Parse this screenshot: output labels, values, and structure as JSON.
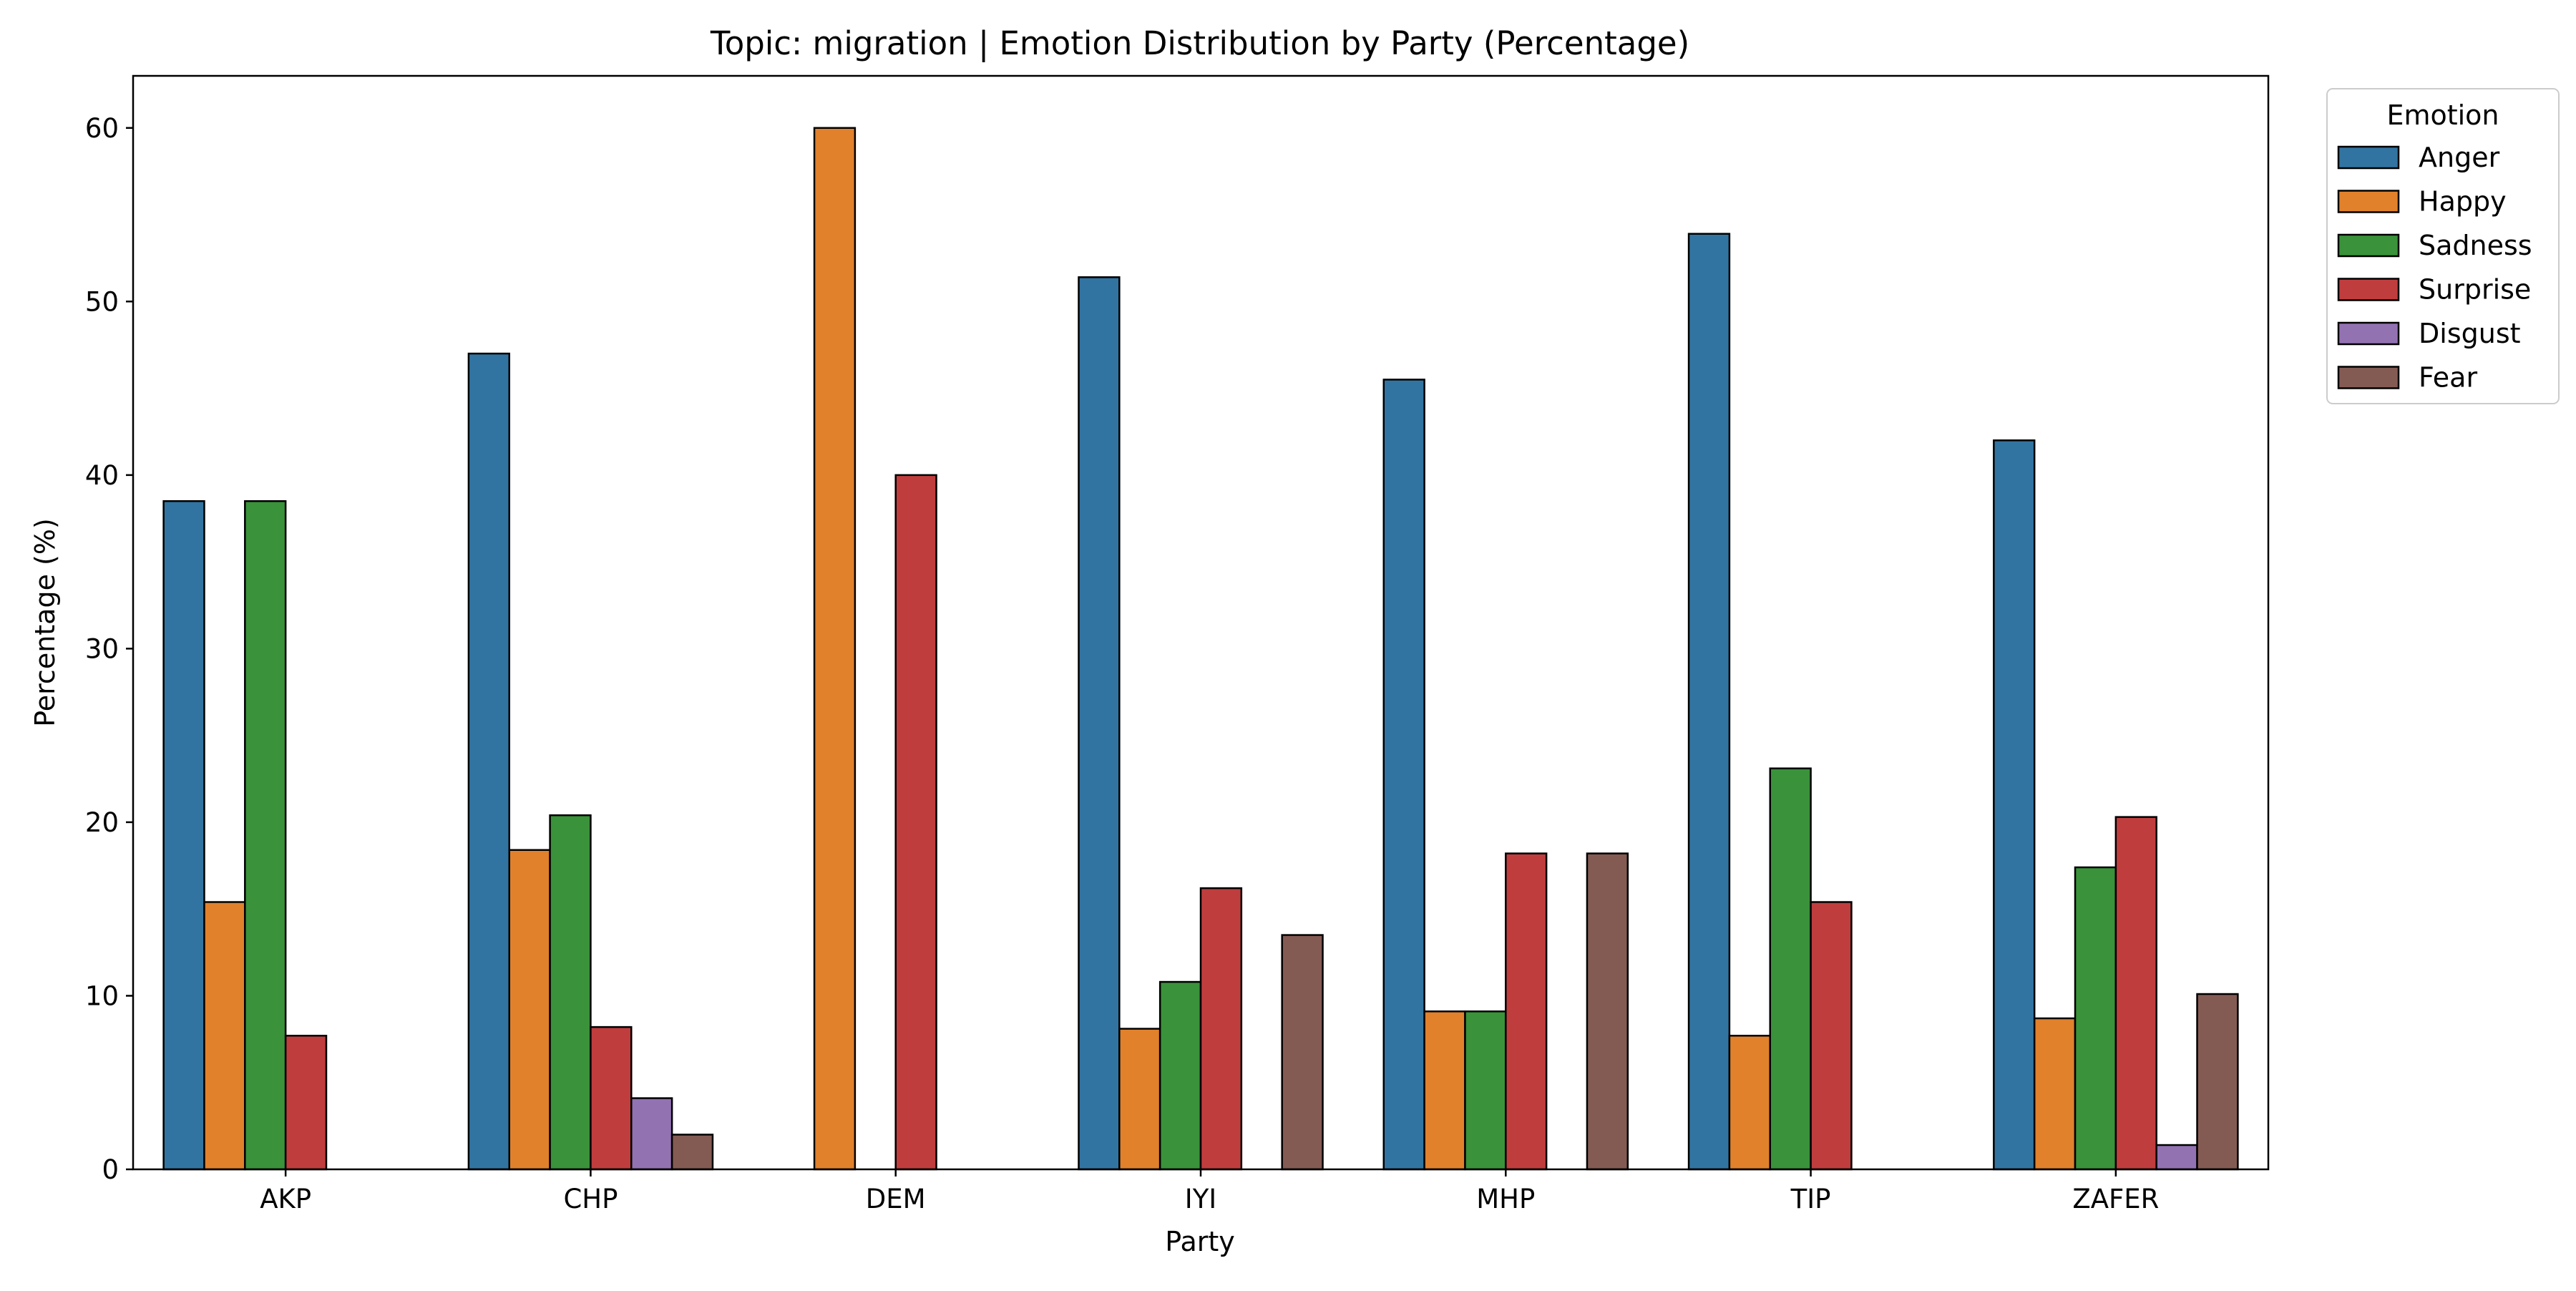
{
  "chart_data": {
    "type": "bar",
    "title": "Topic: migration | Emotion Distribution by Party (Percentage)",
    "xlabel": "Party",
    "ylabel": "Percentage (%)",
    "categories": [
      "AKP",
      "CHP",
      "DEM",
      "IYI",
      "MHP",
      "TIP",
      "ZAFER"
    ],
    "ylim": [
      0,
      63
    ],
    "yticks": [
      0,
      10,
      20,
      30,
      40,
      50,
      60
    ],
    "grid": false,
    "legend": {
      "title": "Emotion",
      "position": "outside-top-right"
    },
    "series": [
      {
        "name": "Anger",
        "color": "#3274a1",
        "values": [
          38.5,
          47.0,
          null,
          51.4,
          45.5,
          53.9,
          42.0
        ]
      },
      {
        "name": "Happy",
        "color": "#e1812c",
        "values": [
          15.4,
          18.4,
          60.0,
          8.1,
          9.1,
          7.7,
          8.7
        ]
      },
      {
        "name": "Sadness",
        "color": "#3a923a",
        "values": [
          38.5,
          20.4,
          null,
          10.8,
          9.1,
          23.1,
          17.4
        ]
      },
      {
        "name": "Surprise",
        "color": "#c03d3e",
        "values": [
          7.7,
          8.2,
          40.0,
          16.2,
          18.2,
          15.4,
          20.3
        ]
      },
      {
        "name": "Disgust",
        "color": "#9372b2",
        "values": [
          null,
          4.1,
          null,
          null,
          null,
          null,
          1.4
        ]
      },
      {
        "name": "Fear",
        "color": "#845b53",
        "values": [
          null,
          2.0,
          null,
          13.5,
          18.2,
          null,
          10.1
        ]
      }
    ]
  }
}
